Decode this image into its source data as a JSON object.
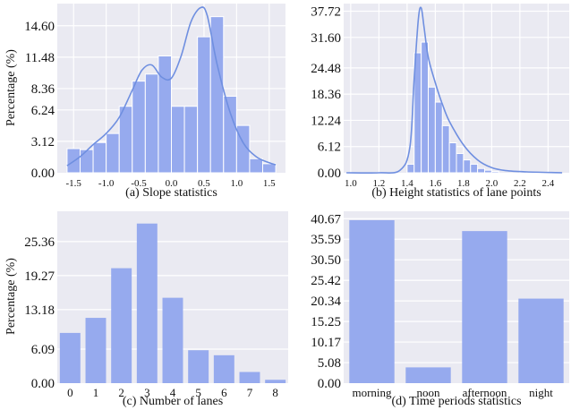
{
  "colors": {
    "panel": "#eaeaf2",
    "grid": "#ffffff",
    "bar": "#96aaee",
    "kde": "#6f8fe0"
  },
  "chart_data": [
    {
      "type": "bar",
      "title": "(a) Slope statistics",
      "ylabel": "Percentage (%)",
      "xlim": [
        -1.75,
        1.75
      ],
      "ylim": [
        0,
        16.8
      ],
      "yticks": [
        "0.00",
        "3.12",
        "6.24",
        "8.36",
        "11.48",
        "14.60"
      ],
      "xticks": [
        "-1.5",
        "-1.0",
        "-0.5",
        "0.0",
        "0.5",
        "1.0",
        "1.5"
      ],
      "bin_edges": [
        -1.6,
        -1.4,
        -1.2,
        -1.0,
        -0.8,
        -0.6,
        -0.4,
        -0.2,
        0.0,
        0.2,
        0.4,
        0.6,
        0.8,
        1.0,
        1.2,
        1.4,
        1.6
      ],
      "values": [
        2.4,
        2.3,
        3.0,
        3.9,
        6.6,
        9.1,
        9.8,
        11.6,
        6.6,
        6.6,
        13.5,
        15.5,
        7.6,
        4.7,
        1.4,
        0.9
      ],
      "kde_x": [
        -1.6,
        -1.4,
        -1.2,
        -1.0,
        -0.8,
        -0.6,
        -0.45,
        -0.3,
        -0.15,
        0.0,
        0.15,
        0.3,
        0.45,
        0.55,
        0.7,
        0.9,
        1.1,
        1.3,
        1.5,
        1.6
      ],
      "kde_y": [
        0.7,
        1.6,
        2.8,
        3.9,
        5.5,
        8.2,
        10.2,
        10.7,
        9.5,
        9.4,
        11.6,
        15.0,
        16.4,
        15.6,
        10.8,
        6.0,
        3.0,
        1.6,
        1.0,
        0.8
      ]
    },
    {
      "type": "bar",
      "title": "(b) Height statistics of lane points",
      "ylabel": "",
      "xlim": [
        0.95,
        2.55
      ],
      "ylim": [
        0,
        39.5
      ],
      "yticks": [
        "0.00",
        "6.12",
        "12.24",
        "18.36",
        "24.48",
        "31.60",
        "37.72"
      ],
      "xticks": [
        "1.0",
        "1.2",
        "1.4",
        "1.6",
        "1.8",
        "2.0",
        "2.2",
        "2.4"
      ],
      "bin_edges": [
        1.4,
        1.45,
        1.5,
        1.55,
        1.6,
        1.65,
        1.7,
        1.75,
        1.8,
        1.85,
        1.9,
        1.95,
        2.0,
        2.05
      ],
      "values": [
        2.0,
        28.0,
        30.5,
        20.0,
        16.5,
        11.0,
        7.0,
        4.5,
        3.0,
        2.0,
        1.0,
        0.6,
        0.3
      ],
      "kde_x": [
        0.97,
        1.2,
        1.35,
        1.42,
        1.45,
        1.48,
        1.5,
        1.52,
        1.55,
        1.6,
        1.65,
        1.7,
        1.8,
        1.9,
        2.0,
        2.1,
        2.25,
        2.5
      ],
      "kde_y": [
        0.0,
        0.0,
        0.6,
        6.0,
        22.0,
        36.0,
        38.5,
        34.0,
        27.0,
        21.0,
        16.0,
        12.0,
        6.5,
        3.0,
        1.2,
        0.5,
        0.2,
        0.0
      ]
    },
    {
      "type": "bar",
      "title": "(c) Number of lanes",
      "ylabel": "Percentage (%)",
      "ylim": [
        0,
        30.8
      ],
      "yticks": [
        "0.00",
        "6.09",
        "13.18",
        "19.27",
        "25.36"
      ],
      "categories": [
        "0",
        "1",
        "2",
        "3",
        "4",
        "5",
        "6",
        "7",
        "8"
      ],
      "values": [
        9.0,
        11.7,
        20.6,
        28.6,
        15.3,
        5.9,
        5.0,
        2.0,
        0.6
      ]
    },
    {
      "type": "bar",
      "title": "(d) Time periods statistics",
      "ylabel": "",
      "ylim": [
        0,
        42.5
      ],
      "yticks": [
        "0.00",
        "5.08",
        "10.17",
        "15.25",
        "20.34",
        "25.42",
        "30.50",
        "35.59",
        "40.67"
      ],
      "categories": [
        "morning",
        "noon",
        "afternoon",
        "night"
      ],
      "values": [
        40.3,
        3.9,
        37.6,
        20.9
      ]
    }
  ]
}
